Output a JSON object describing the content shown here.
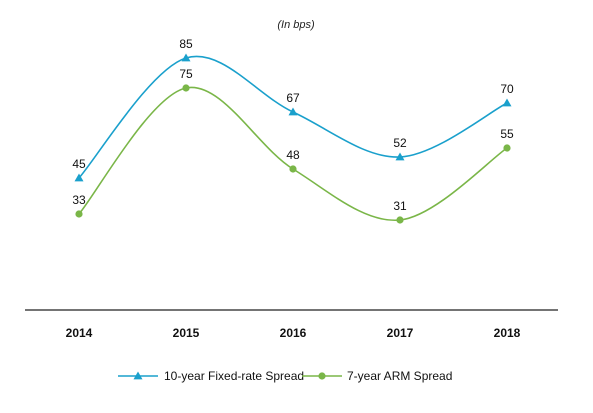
{
  "chart_data": {
    "type": "line",
    "title": "",
    "subtitle": "(In bps)",
    "xlabel": "",
    "ylabel": "",
    "categories": [
      "2014",
      "2015",
      "2016",
      "2017",
      "2018"
    ],
    "ylim": [
      0,
      100
    ],
    "grid": false,
    "legend_position": "bottom",
    "series": [
      {
        "name": "10-year Fixed-rate Spread",
        "values": [
          45,
          85,
          67,
          52,
          70
        ],
        "color": "#1aa0cc",
        "marker": "triangle"
      },
      {
        "name": "7-year ARM Spread",
        "values": [
          33,
          75,
          48,
          31,
          55
        ],
        "color": "#7ab648",
        "marker": "circle"
      }
    ]
  }
}
